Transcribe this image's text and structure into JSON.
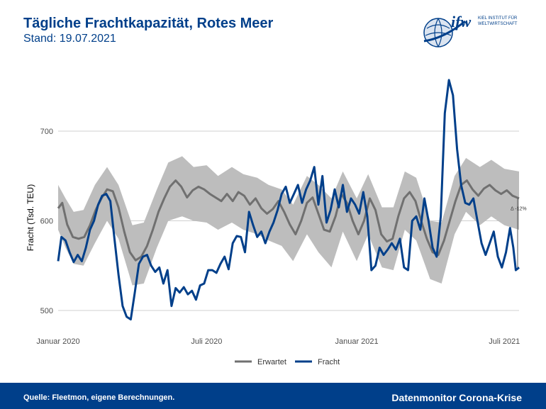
{
  "header": {
    "title": "Tägliche Frachtkapazität, Rotes Meer",
    "subtitle": "Stand: 19.07.2021"
  },
  "logo": {
    "mark": "ifw",
    "line1": "KIEL INSTITUT FÜR",
    "line2": "WELTWIRTSCHAFT",
    "globe_color": "#003f8a"
  },
  "footer": {
    "source": "Quelle: Fleetmon, eigene Berechnungen.",
    "brand": "Datenmonitor Corona-Krise",
    "background": "#003f8a"
  },
  "chart_data": {
    "type": "line",
    "title": "Tägliche Frachtkapazität, Rotes Meer",
    "ylabel": "Fracht (Tsd. TEU)",
    "xlabel": "",
    "xlim": [
      "2020-01-01",
      "2021-07-19"
    ],
    "ylim": [
      490,
      760
    ],
    "yticks": [
      500,
      600,
      700
    ],
    "xticks": [
      {
        "date": "2020-01-01",
        "label": "Januar 2020"
      },
      {
        "date": "2020-07-01",
        "label": "Juli 2020"
      },
      {
        "date": "2021-01-01",
        "label": "Januar 2021"
      },
      {
        "date": "2021-07-01",
        "label": "Juli 2021"
      }
    ],
    "grid": true,
    "legend_position": "bottom",
    "annotation": "Δ -12%",
    "colors": {
      "fracht": "#003f8a",
      "erwartet": "#707070",
      "band": "#bdbdbd"
    },
    "series": [
      {
        "name": "Erwartet",
        "points": [
          [
            "2020-01-01",
            614
          ],
          [
            "2020-01-06",
            620
          ],
          [
            "2020-01-12",
            596
          ],
          [
            "2020-01-19",
            582
          ],
          [
            "2020-01-26",
            580
          ],
          [
            "2020-02-02",
            582
          ],
          [
            "2020-02-09",
            595
          ],
          [
            "2020-02-16",
            612
          ],
          [
            "2020-02-23",
            625
          ],
          [
            "2020-03-01",
            635
          ],
          [
            "2020-03-08",
            633
          ],
          [
            "2020-03-15",
            615
          ],
          [
            "2020-03-22",
            588
          ],
          [
            "2020-03-29",
            565
          ],
          [
            "2020-04-05",
            556
          ],
          [
            "2020-04-12",
            560
          ],
          [
            "2020-04-19",
            572
          ],
          [
            "2020-04-26",
            590
          ],
          [
            "2020-05-03",
            610
          ],
          [
            "2020-05-10",
            625
          ],
          [
            "2020-05-17",
            638
          ],
          [
            "2020-05-24",
            645
          ],
          [
            "2020-05-31",
            638
          ],
          [
            "2020-06-07",
            626
          ],
          [
            "2020-06-14",
            634
          ],
          [
            "2020-06-21",
            638
          ],
          [
            "2020-06-28",
            635
          ],
          [
            "2020-07-05",
            630
          ],
          [
            "2020-07-12",
            626
          ],
          [
            "2020-07-19",
            622
          ],
          [
            "2020-07-26",
            630
          ],
          [
            "2020-08-02",
            622
          ],
          [
            "2020-08-09",
            632
          ],
          [
            "2020-08-16",
            628
          ],
          [
            "2020-08-23",
            618
          ],
          [
            "2020-08-30",
            625
          ],
          [
            "2020-09-06",
            614
          ],
          [
            "2020-09-13",
            608
          ],
          [
            "2020-09-20",
            613
          ],
          [
            "2020-09-27",
            622
          ],
          [
            "2020-10-04",
            610
          ],
          [
            "2020-10-11",
            596
          ],
          [
            "2020-10-18",
            585
          ],
          [
            "2020-10-25",
            600
          ],
          [
            "2020-11-01",
            620
          ],
          [
            "2020-11-08",
            626
          ],
          [
            "2020-11-15",
            608
          ],
          [
            "2020-11-22",
            590
          ],
          [
            "2020-11-29",
            588
          ],
          [
            "2020-12-06",
            605
          ],
          [
            "2020-12-13",
            630
          ],
          [
            "2020-12-20",
            620
          ],
          [
            "2020-12-27",
            600
          ],
          [
            "2021-01-03",
            585
          ],
          [
            "2021-01-10",
            600
          ],
          [
            "2021-01-17",
            625
          ],
          [
            "2021-01-24",
            612
          ],
          [
            "2021-01-31",
            585
          ],
          [
            "2021-02-07",
            577
          ],
          [
            "2021-02-14",
            580
          ],
          [
            "2021-02-21",
            605
          ],
          [
            "2021-02-28",
            625
          ],
          [
            "2021-03-07",
            632
          ],
          [
            "2021-03-14",
            622
          ],
          [
            "2021-03-21",
            600
          ],
          [
            "2021-03-28",
            580
          ],
          [
            "2021-04-04",
            565
          ],
          [
            "2021-04-11",
            562
          ],
          [
            "2021-04-18",
            578
          ],
          [
            "2021-04-25",
            600
          ],
          [
            "2021-05-02",
            622
          ],
          [
            "2021-05-09",
            640
          ],
          [
            "2021-05-16",
            645
          ],
          [
            "2021-05-23",
            635
          ],
          [
            "2021-05-30",
            628
          ],
          [
            "2021-06-06",
            636
          ],
          [
            "2021-06-13",
            640
          ],
          [
            "2021-06-20",
            634
          ],
          [
            "2021-06-27",
            630
          ],
          [
            "2021-07-04",
            634
          ],
          [
            "2021-07-11",
            628
          ],
          [
            "2021-07-19",
            625
          ]
        ]
      },
      {
        "name": "Fracht",
        "points": [
          [
            "2020-01-01",
            555
          ],
          [
            "2020-01-05",
            582
          ],
          [
            "2020-01-10",
            578
          ],
          [
            "2020-01-15",
            565
          ],
          [
            "2020-01-20",
            554
          ],
          [
            "2020-01-25",
            562
          ],
          [
            "2020-01-30",
            555
          ],
          [
            "2020-02-04",
            570
          ],
          [
            "2020-02-09",
            590
          ],
          [
            "2020-02-14",
            600
          ],
          [
            "2020-02-19",
            618
          ],
          [
            "2020-02-24",
            628
          ],
          [
            "2020-02-29",
            630
          ],
          [
            "2020-03-05",
            622
          ],
          [
            "2020-03-10",
            580
          ],
          [
            "2020-03-15",
            540
          ],
          [
            "2020-03-20",
            505
          ],
          [
            "2020-03-25",
            493
          ],
          [
            "2020-03-30",
            490
          ],
          [
            "2020-04-04",
            520
          ],
          [
            "2020-04-09",
            552
          ],
          [
            "2020-04-14",
            560
          ],
          [
            "2020-04-19",
            562
          ],
          [
            "2020-04-24",
            550
          ],
          [
            "2020-04-29",
            543
          ],
          [
            "2020-05-04",
            548
          ],
          [
            "2020-05-09",
            530
          ],
          [
            "2020-05-14",
            545
          ],
          [
            "2020-05-19",
            505
          ],
          [
            "2020-05-24",
            525
          ],
          [
            "2020-05-29",
            520
          ],
          [
            "2020-06-03",
            526
          ],
          [
            "2020-06-08",
            518
          ],
          [
            "2020-06-13",
            522
          ],
          [
            "2020-06-18",
            512
          ],
          [
            "2020-06-23",
            528
          ],
          [
            "2020-06-28",
            530
          ],
          [
            "2020-07-03",
            545
          ],
          [
            "2020-07-08",
            545
          ],
          [
            "2020-07-13",
            542
          ],
          [
            "2020-07-18",
            552
          ],
          [
            "2020-07-23",
            560
          ],
          [
            "2020-07-28",
            546
          ],
          [
            "2020-08-02",
            575
          ],
          [
            "2020-08-07",
            583
          ],
          [
            "2020-08-12",
            582
          ],
          [
            "2020-08-17",
            565
          ],
          [
            "2020-08-22",
            610
          ],
          [
            "2020-08-27",
            595
          ],
          [
            "2020-09-01",
            582
          ],
          [
            "2020-09-06",
            588
          ],
          [
            "2020-09-11",
            575
          ],
          [
            "2020-09-16",
            588
          ],
          [
            "2020-09-21",
            598
          ],
          [
            "2020-09-26",
            612
          ],
          [
            "2020-10-01",
            630
          ],
          [
            "2020-10-06",
            638
          ],
          [
            "2020-10-11",
            620
          ],
          [
            "2020-10-16",
            630
          ],
          [
            "2020-10-21",
            640
          ],
          [
            "2020-10-26",
            620
          ],
          [
            "2020-10-31",
            635
          ],
          [
            "2020-11-05",
            645
          ],
          [
            "2020-11-10",
            660
          ],
          [
            "2020-11-15",
            618
          ],
          [
            "2020-11-20",
            650
          ],
          [
            "2020-11-25",
            598
          ],
          [
            "2020-11-30",
            612
          ],
          [
            "2020-12-05",
            635
          ],
          [
            "2020-12-10",
            615
          ],
          [
            "2020-12-15",
            640
          ],
          [
            "2020-12-20",
            610
          ],
          [
            "2020-12-25",
            625
          ],
          [
            "2020-12-30",
            618
          ],
          [
            "2021-01-04",
            608
          ],
          [
            "2021-01-09",
            632
          ],
          [
            "2021-01-14",
            605
          ],
          [
            "2021-01-19",
            545
          ],
          [
            "2021-01-24",
            550
          ],
          [
            "2021-01-29",
            570
          ],
          [
            "2021-02-03",
            562
          ],
          [
            "2021-02-08",
            568
          ],
          [
            "2021-02-13",
            575
          ],
          [
            "2021-02-18",
            568
          ],
          [
            "2021-02-23",
            580
          ],
          [
            "2021-02-28",
            548
          ],
          [
            "2021-03-05",
            545
          ],
          [
            "2021-03-10",
            600
          ],
          [
            "2021-03-15",
            605
          ],
          [
            "2021-03-20",
            590
          ],
          [
            "2021-03-25",
            625
          ],
          [
            "2021-03-30",
            600
          ],
          [
            "2021-04-04",
            570
          ],
          [
            "2021-04-09",
            560
          ],
          [
            "2021-04-14",
            605
          ],
          [
            "2021-04-19",
            720
          ],
          [
            "2021-04-24",
            757
          ],
          [
            "2021-04-29",
            740
          ],
          [
            "2021-05-04",
            680
          ],
          [
            "2021-05-09",
            640
          ],
          [
            "2021-05-14",
            620
          ],
          [
            "2021-05-19",
            618
          ],
          [
            "2021-05-24",
            625
          ],
          [
            "2021-05-29",
            600
          ],
          [
            "2021-06-03",
            575
          ],
          [
            "2021-06-08",
            562
          ],
          [
            "2021-06-13",
            575
          ],
          [
            "2021-06-18",
            588
          ],
          [
            "2021-06-23",
            560
          ],
          [
            "2021-06-28",
            548
          ],
          [
            "2021-07-03",
            565
          ],
          [
            "2021-07-08",
            592
          ],
          [
            "2021-07-12",
            570
          ],
          [
            "2021-07-15",
            545
          ],
          [
            "2021-07-19",
            548
          ]
        ]
      },
      {
        "name": "band_upper",
        "points": [
          [
            "2020-01-01",
            640
          ],
          [
            "2020-01-10",
            625
          ],
          [
            "2020-01-20",
            610
          ],
          [
            "2020-02-01",
            612
          ],
          [
            "2020-02-15",
            640
          ],
          [
            "2020-03-01",
            660
          ],
          [
            "2020-03-15",
            640
          ],
          [
            "2020-04-01",
            595
          ],
          [
            "2020-04-15",
            598
          ],
          [
            "2020-05-01",
            635
          ],
          [
            "2020-05-15",
            665
          ],
          [
            "2020-06-01",
            672
          ],
          [
            "2020-06-15",
            660
          ],
          [
            "2020-07-01",
            662
          ],
          [
            "2020-07-15",
            650
          ],
          [
            "2020-08-01",
            660
          ],
          [
            "2020-08-15",
            652
          ],
          [
            "2020-09-01",
            648
          ],
          [
            "2020-09-15",
            640
          ],
          [
            "2020-10-01",
            635
          ],
          [
            "2020-10-15",
            618
          ],
          [
            "2020-11-01",
            650
          ],
          [
            "2020-11-15",
            640
          ],
          [
            "2020-12-01",
            625
          ],
          [
            "2020-12-15",
            655
          ],
          [
            "2021-01-01",
            625
          ],
          [
            "2021-01-15",
            652
          ],
          [
            "2021-02-01",
            615
          ],
          [
            "2021-02-15",
            615
          ],
          [
            "2021-03-01",
            655
          ],
          [
            "2021-03-15",
            648
          ],
          [
            "2021-04-01",
            600
          ],
          [
            "2021-04-15",
            598
          ],
          [
            "2021-05-01",
            650
          ],
          [
            "2021-05-15",
            670
          ],
          [
            "2021-06-01",
            660
          ],
          [
            "2021-06-15",
            668
          ],
          [
            "2021-07-01",
            658
          ],
          [
            "2021-07-19",
            655
          ]
        ]
      },
      {
        "name": "band_lower",
        "points": [
          [
            "2020-01-01",
            590
          ],
          [
            "2020-01-10",
            570
          ],
          [
            "2020-01-20",
            552
          ],
          [
            "2020-02-01",
            550
          ],
          [
            "2020-02-15",
            575
          ],
          [
            "2020-03-01",
            600
          ],
          [
            "2020-03-15",
            580
          ],
          [
            "2020-04-01",
            528
          ],
          [
            "2020-04-15",
            530
          ],
          [
            "2020-05-01",
            570
          ],
          [
            "2020-05-15",
            600
          ],
          [
            "2020-06-01",
            605
          ],
          [
            "2020-06-15",
            600
          ],
          [
            "2020-07-01",
            598
          ],
          [
            "2020-07-15",
            590
          ],
          [
            "2020-08-01",
            598
          ],
          [
            "2020-08-15",
            590
          ],
          [
            "2020-09-01",
            585
          ],
          [
            "2020-09-15",
            578
          ],
          [
            "2020-10-01",
            572
          ],
          [
            "2020-10-15",
            555
          ],
          [
            "2020-11-01",
            585
          ],
          [
            "2020-11-15",
            565
          ],
          [
            "2020-12-01",
            548
          ],
          [
            "2020-12-15",
            588
          ],
          [
            "2021-01-01",
            555
          ],
          [
            "2021-01-15",
            585
          ],
          [
            "2021-02-01",
            548
          ],
          [
            "2021-02-15",
            545
          ],
          [
            "2021-03-01",
            590
          ],
          [
            "2021-03-15",
            578
          ],
          [
            "2021-04-01",
            535
          ],
          [
            "2021-04-15",
            530
          ],
          [
            "2021-05-01",
            585
          ],
          [
            "2021-05-15",
            610
          ],
          [
            "2021-06-01",
            595
          ],
          [
            "2021-06-15",
            605
          ],
          [
            "2021-07-01",
            595
          ],
          [
            "2021-07-19",
            590
          ]
        ]
      }
    ]
  }
}
